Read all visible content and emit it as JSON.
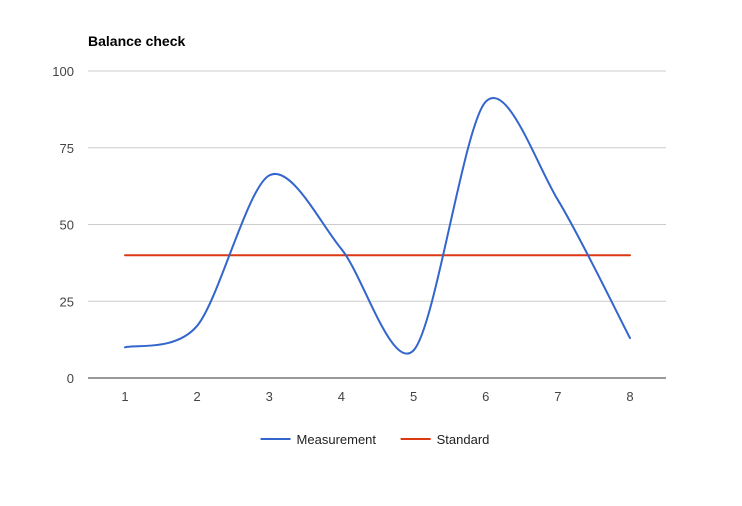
{
  "chart_data": {
    "type": "line",
    "title": "Balance check",
    "xlabel": "",
    "ylabel": "",
    "x": [
      1,
      2,
      3,
      4,
      5,
      6,
      7,
      8
    ],
    "ylim": [
      0,
      100
    ],
    "yticks": [
      0,
      25,
      50,
      75,
      100
    ],
    "grid": true,
    "legend_position": "bottom",
    "smooth": true,
    "series": [
      {
        "name": "Measurement",
        "color": "#3366cc",
        "values": [
          10,
          17,
          66,
          42,
          9,
          90,
          58,
          13
        ]
      },
      {
        "name": "Standard",
        "color": "#dc3912",
        "values": [
          40,
          40,
          40,
          40,
          40,
          40,
          40,
          40
        ]
      }
    ]
  }
}
